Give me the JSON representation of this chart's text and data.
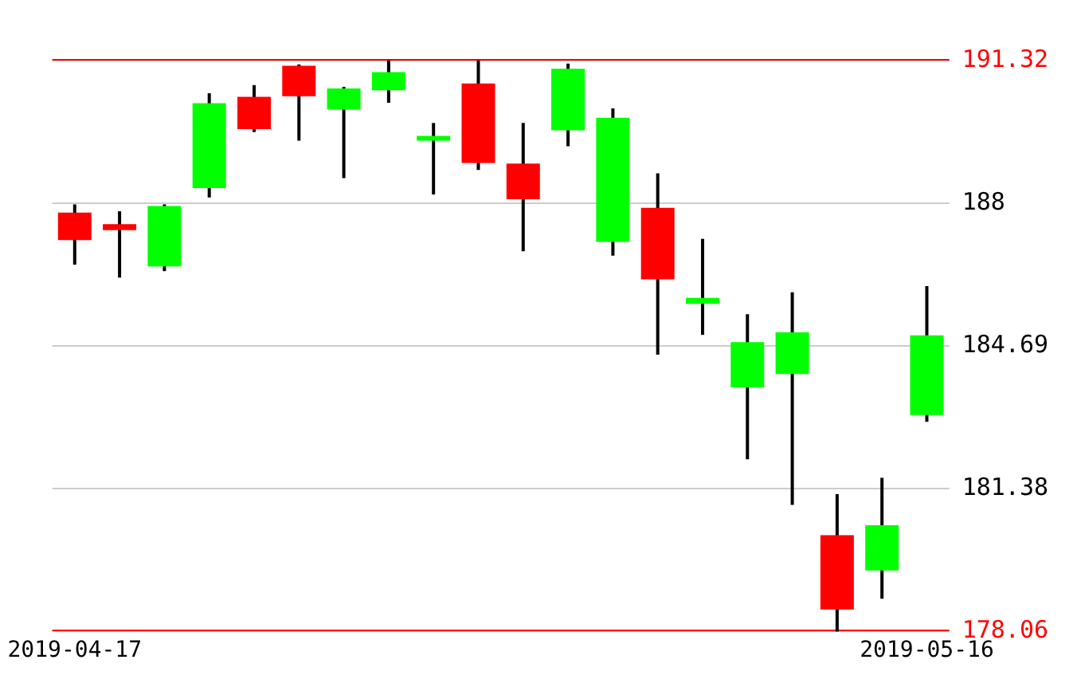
{
  "chart_data": {
    "type": "candlestick",
    "categories": [
      "2019-04-17",
      null,
      null,
      null,
      null,
      null,
      null,
      null,
      null,
      null,
      null,
      null,
      null,
      null,
      null,
      null,
      null,
      null,
      null,
      "2019-05-16"
    ],
    "ohlc": [
      [
        187.79,
        187.98,
        186.58,
        187.15
      ],
      [
        187.52,
        187.82,
        186.28,
        187.38
      ],
      [
        186.54,
        187.98,
        186.43,
        187.94
      ],
      [
        188.36,
        190.56,
        188.14,
        190.33
      ],
      [
        190.48,
        190.75,
        189.66,
        189.73
      ],
      [
        191.2,
        191.23,
        189.46,
        190.49
      ],
      [
        190.18,
        190.71,
        188.59,
        190.67
      ],
      [
        190.63,
        191.32,
        190.34,
        191.05
      ],
      [
        189.46,
        189.87,
        188.21,
        189.57
      ],
      [
        190.79,
        191.32,
        188.78,
        188.94
      ],
      [
        188.93,
        189.87,
        186.89,
        188.1
      ],
      [
        189.7,
        191.25,
        189.33,
        191.13
      ],
      [
        187.11,
        190.21,
        186.79,
        189.99
      ],
      [
        187.9,
        188.7,
        184.49,
        186.24
      ],
      [
        185.67,
        187.18,
        184.95,
        185.81
      ],
      [
        183.73,
        185.43,
        182.06,
        184.78
      ],
      [
        184.04,
        185.94,
        181.0,
        185.01
      ],
      [
        180.3,
        181.25,
        178.06,
        178.57
      ],
      [
        179.48,
        181.63,
        178.82,
        180.53
      ],
      [
        183.09,
        186.08,
        182.93,
        184.94
      ]
    ],
    "colors": [
      "#ff0000",
      "#ff0000",
      "#00ff00",
      "#00ff00",
      "#ff0000",
      "#ff0000",
      "#00ff00",
      "#00ff00",
      "#00ff00",
      "#ff0000",
      "#ff0000",
      "#00ff00",
      "#00ff00",
      "#ff0000",
      "#00ff00",
      "#00ff00",
      "#00ff00",
      "#ff0000",
      "#00ff00",
      "#00ff00"
    ],
    "ylim": [
      178.06,
      191.32
    ],
    "yticks": [
      178.06,
      181.38,
      184.69,
      188.0,
      191.32
    ],
    "grid": "y",
    "ref_lines": [
      {
        "axis": "y",
        "value": 191.32,
        "color": "#ff0000"
      },
      {
        "axis": "y",
        "value": 178.06,
        "color": "#ff0000"
      }
    ]
  }
}
